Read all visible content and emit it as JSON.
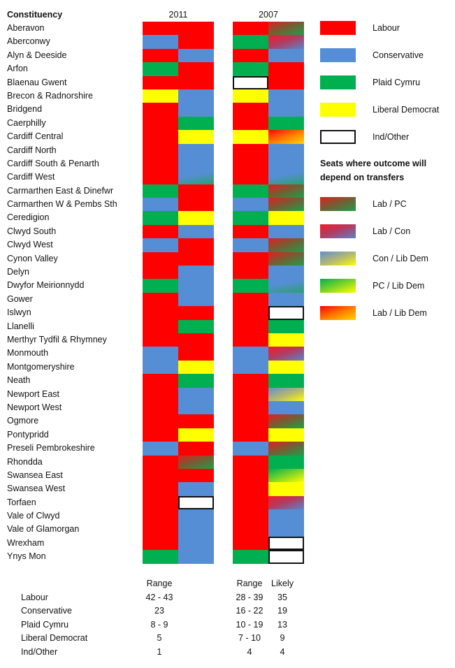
{
  "chart_data": {
    "type": "table",
    "title": "",
    "header": {
      "constituency": "Constituency",
      "year_2011": "2011",
      "year_2007": "2007"
    },
    "grid": "false",
    "legend_position": "right",
    "parties": {
      "L": {
        "label": "Labour",
        "color": "#ff0000"
      },
      "C": {
        "label": "Conservative",
        "color": "#558ed5"
      },
      "P": {
        "label": "Plaid Cymru",
        "color": "#00b050"
      },
      "Y": {
        "label": "Liberal Democrat",
        "color": "#ffff00"
      },
      "I": {
        "label": "Ind/Other",
        "color": "#ffffff"
      }
    },
    "transfer_heading": "Seats where outcome will depend on transfers",
    "transfer_pairs": [
      {
        "code": "LPC",
        "label": "Lab / PC"
      },
      {
        "code": "LC",
        "label": "Lab / Con"
      },
      {
        "code": "CY",
        "label": "Con / Lib Dem"
      },
      {
        "code": "PY",
        "label": "PC / Lib Dem"
      },
      {
        "code": "LY",
        "label": "Lab / Lib Dem"
      }
    ],
    "rows": [
      {
        "name": "Aberavon",
        "y2011": [
          "L",
          "L"
        ],
        "y2007": [
          "L",
          "LPC"
        ]
      },
      {
        "name": "Aberconwy",
        "y2011": [
          "C",
          "L"
        ],
        "y2007": [
          "P",
          "LC"
        ]
      },
      {
        "name": "Alyn & Deeside",
        "y2011": [
          "L",
          "C"
        ],
        "y2007": [
          "L",
          "C"
        ]
      },
      {
        "name": "Arfon",
        "y2011": [
          "P",
          "L"
        ],
        "y2007": [
          "P",
          "L"
        ]
      },
      {
        "name": "Blaenau Gwent",
        "y2011": [
          "L",
          "L"
        ],
        "y2007": [
          "I",
          "L"
        ]
      },
      {
        "name": "Brecon & Radnorshire",
        "y2011": [
          "Y",
          "C"
        ],
        "y2007": [
          "Y",
          "C"
        ]
      },
      {
        "name": "Bridgend",
        "y2011": [
          "L",
          "C"
        ],
        "y2007": [
          "L",
          "C"
        ]
      },
      {
        "name": "Caerphilly",
        "y2011": [
          "L",
          "P"
        ],
        "y2007": [
          "L",
          "P"
        ]
      },
      {
        "name": "Cardiff Central",
        "y2011": [
          "L",
          "Y"
        ],
        "y2007": [
          "Y",
          "LY"
        ]
      },
      {
        "name": "Cardiff North",
        "y2011": [
          "L",
          "C"
        ],
        "y2007": [
          "L",
          "C"
        ]
      },
      {
        "name": "Cardiff South & Penarth",
        "y2011": [
          "L",
          "C"
        ],
        "y2007": [
          "L",
          "C"
        ]
      },
      {
        "name": "Cardiff West",
        "y2011": [
          "L",
          "CP"
        ],
        "y2007": [
          "L",
          "CP"
        ]
      },
      {
        "name": "Carmarthen East & Dinefwr",
        "y2011": [
          "P",
          "L"
        ],
        "y2007": [
          "P",
          "LPC"
        ]
      },
      {
        "name": "Carmarthen W & Pembs Sth",
        "y2011": [
          "C",
          "L"
        ],
        "y2007": [
          "C",
          "LPC"
        ]
      },
      {
        "name": "Ceredigion",
        "y2011": [
          "P",
          "Y"
        ],
        "y2007": [
          "P",
          "Y"
        ]
      },
      {
        "name": "Clwyd South",
        "y2011": [
          "L",
          "C"
        ],
        "y2007": [
          "L",
          "C"
        ]
      },
      {
        "name": "Clwyd West",
        "y2011": [
          "C",
          "L"
        ],
        "y2007": [
          "C",
          "LPC"
        ]
      },
      {
        "name": "Cynon Valley",
        "y2011": [
          "L",
          "L"
        ],
        "y2007": [
          "L",
          "LPC"
        ]
      },
      {
        "name": "Delyn",
        "y2011": [
          "L",
          "C"
        ],
        "y2007": [
          "L",
          "C"
        ]
      },
      {
        "name": "Dwyfor Meirionnydd",
        "y2011": [
          "P",
          "C"
        ],
        "y2007": [
          "P",
          "CP"
        ]
      },
      {
        "name": "Gower",
        "y2011": [
          "L",
          "C"
        ],
        "y2007": [
          "L",
          "C"
        ]
      },
      {
        "name": "Islwyn",
        "y2011": [
          "L",
          "L"
        ],
        "y2007": [
          "L",
          "I"
        ]
      },
      {
        "name": "Llanelli",
        "y2011": [
          "L",
          "P"
        ],
        "y2007": [
          "L",
          "P"
        ]
      },
      {
        "name": "Merthyr Tydfil & Rhymney",
        "y2011": [
          "L",
          "L"
        ],
        "y2007": [
          "L",
          "Y"
        ]
      },
      {
        "name": "Monmouth",
        "y2011": [
          "C",
          "L"
        ],
        "y2007": [
          "C",
          "LC"
        ]
      },
      {
        "name": "Montgomeryshire",
        "y2011": [
          "C",
          "Y"
        ],
        "y2007": [
          "C",
          "Y"
        ]
      },
      {
        "name": "Neath",
        "y2011": [
          "L",
          "P"
        ],
        "y2007": [
          "L",
          "P"
        ]
      },
      {
        "name": "Newport East",
        "y2011": [
          "L",
          "C"
        ],
        "y2007": [
          "L",
          "CY"
        ]
      },
      {
        "name": "Newport West",
        "y2011": [
          "L",
          "C"
        ],
        "y2007": [
          "L",
          "C"
        ]
      },
      {
        "name": "Ogmore",
        "y2011": [
          "L",
          "L"
        ],
        "y2007": [
          "L",
          "LPC"
        ]
      },
      {
        "name": "Pontypridd",
        "y2011": [
          "L",
          "Y"
        ],
        "y2007": [
          "L",
          "Y"
        ]
      },
      {
        "name": "Preseli Pembrokeshire",
        "y2011": [
          "C",
          "L"
        ],
        "y2007": [
          "C",
          "LPC"
        ]
      },
      {
        "name": "Rhondda",
        "y2011": [
          "L",
          "LPC"
        ],
        "y2007": [
          "L",
          "P"
        ]
      },
      {
        "name": "Swansea East",
        "y2011": [
          "L",
          "L"
        ],
        "y2007": [
          "L",
          "PY"
        ]
      },
      {
        "name": "Swansea West",
        "y2011": [
          "L",
          "C"
        ],
        "y2007": [
          "L",
          "Y"
        ]
      },
      {
        "name": "Torfaen",
        "y2011": [
          "L",
          "I"
        ],
        "y2007": [
          "L",
          "LC"
        ]
      },
      {
        "name": "Vale of Clwyd",
        "y2011": [
          "L",
          "C"
        ],
        "y2007": [
          "L",
          "C"
        ]
      },
      {
        "name": "Vale of Glamorgan",
        "y2011": [
          "L",
          "C"
        ],
        "y2007": [
          "L",
          "C"
        ]
      },
      {
        "name": "Wrexham",
        "y2011": [
          "L",
          "C"
        ],
        "y2007": [
          "L",
          "I"
        ]
      },
      {
        "name": "Ynys Mon",
        "y2011": [
          "P",
          "C"
        ],
        "y2007": [
          "P",
          "I"
        ]
      }
    ],
    "summary": {
      "headers": {
        "range_2011": "Range",
        "range_2007": "Range",
        "likely_2007": "Likely"
      },
      "rows": [
        {
          "party": "Labour",
          "range_2011": "42 - 43",
          "range_2007": "28 - 39",
          "likely_2007": "35"
        },
        {
          "party": "Conservative",
          "range_2011": "23",
          "range_2007": "16 - 22",
          "likely_2007": "19"
        },
        {
          "party": "Plaid Cymru",
          "range_2011": "8 - 9",
          "range_2007": "10 - 19",
          "likely_2007": "13"
        },
        {
          "party": "Liberal Democrat",
          "range_2011": "5",
          "range_2007": "7 - 10",
          "likely_2007": "9"
        },
        {
          "party": "Ind/Other",
          "range_2011": "1",
          "range_2007": "4",
          "likely_2007": "4"
        }
      ]
    }
  }
}
